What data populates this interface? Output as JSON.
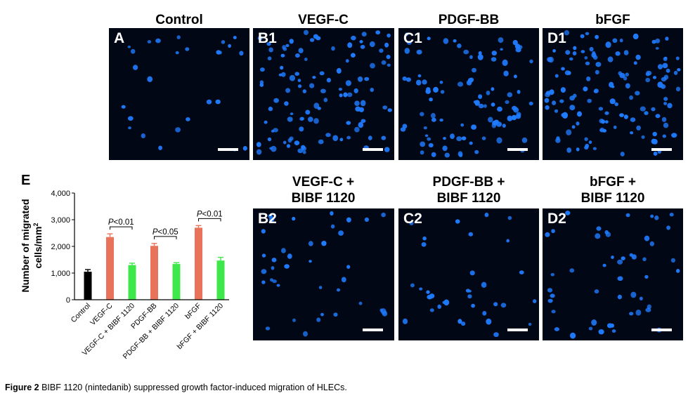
{
  "titles": {
    "control": "Control",
    "vegf": "VEGF-C",
    "pdgf": "PDGF-BB",
    "bfgf": "bFGF",
    "vegf_bibf": [
      "VEGF-C +",
      "BIBF 1120"
    ],
    "pdgf_bibf": [
      "PDGF-BB +",
      "BIBF 1120"
    ],
    "bfgf_bibf": [
      "bFGF +",
      "BIBF 1120"
    ]
  },
  "panels": {
    "A": {
      "label": "A",
      "cell_count": 26
    },
    "B1": {
      "label": "B1",
      "cell_count": 110
    },
    "C1": {
      "label": "C1",
      "cell_count": 95
    },
    "D1": {
      "label": "D1",
      "cell_count": 130
    },
    "B2": {
      "label": "B2",
      "cell_count": 38
    },
    "C2": {
      "label": "C2",
      "cell_count": 34
    },
    "D2": {
      "label": "D2",
      "cell_count": 48
    }
  },
  "colors": {
    "cell": "#1f7cff",
    "panel_bg": "#020716",
    "control_bar": "#000000",
    "growth_factor_bar": "#e8735a",
    "bibf_bar": "#3ee84a"
  },
  "chart_data": {
    "type": "bar",
    "panel_label": "E",
    "categories": [
      "Control",
      "VEGF-C",
      "VEGF-C + BIBF 1120",
      "PDGF-BB",
      "PDGF-BB + BIBF 1120",
      "bFGF",
      "bFGF + BIBF 1120"
    ],
    "values": [
      1050,
      2350,
      1300,
      2020,
      1340,
      2700,
      1470
    ],
    "errors": [
      80,
      120,
      70,
      90,
      50,
      80,
      120
    ],
    "bar_colors": [
      "#000000",
      "#e8735a",
      "#3ee84a",
      "#e8735a",
      "#3ee84a",
      "#e8735a",
      "#3ee84a"
    ],
    "ylabel_line1": "Number of migrated",
    "ylabel_line2": "cells/mm",
    "ylabel_sup": "2",
    "ylim": [
      0,
      4000
    ],
    "yticks": [
      0,
      1000,
      2000,
      3000,
      4000
    ],
    "ytick_labels": [
      "0",
      "1,000",
      "2,000",
      "3,000",
      "4,000"
    ],
    "annotations": [
      {
        "text_italic": "P",
        "text_rest": "<0.01",
        "from": 1,
        "to": 2
      },
      {
        "text_italic": "P",
        "text_rest": "<0.05",
        "from": 3,
        "to": 4
      },
      {
        "text_italic": "P",
        "text_rest": "<0.01",
        "from": 5,
        "to": 6
      }
    ]
  },
  "caption": {
    "bold": "Figure 2",
    "text": " BIBF 1120 (nintedanib) suppressed growth factor-induced migration of HLECs."
  }
}
